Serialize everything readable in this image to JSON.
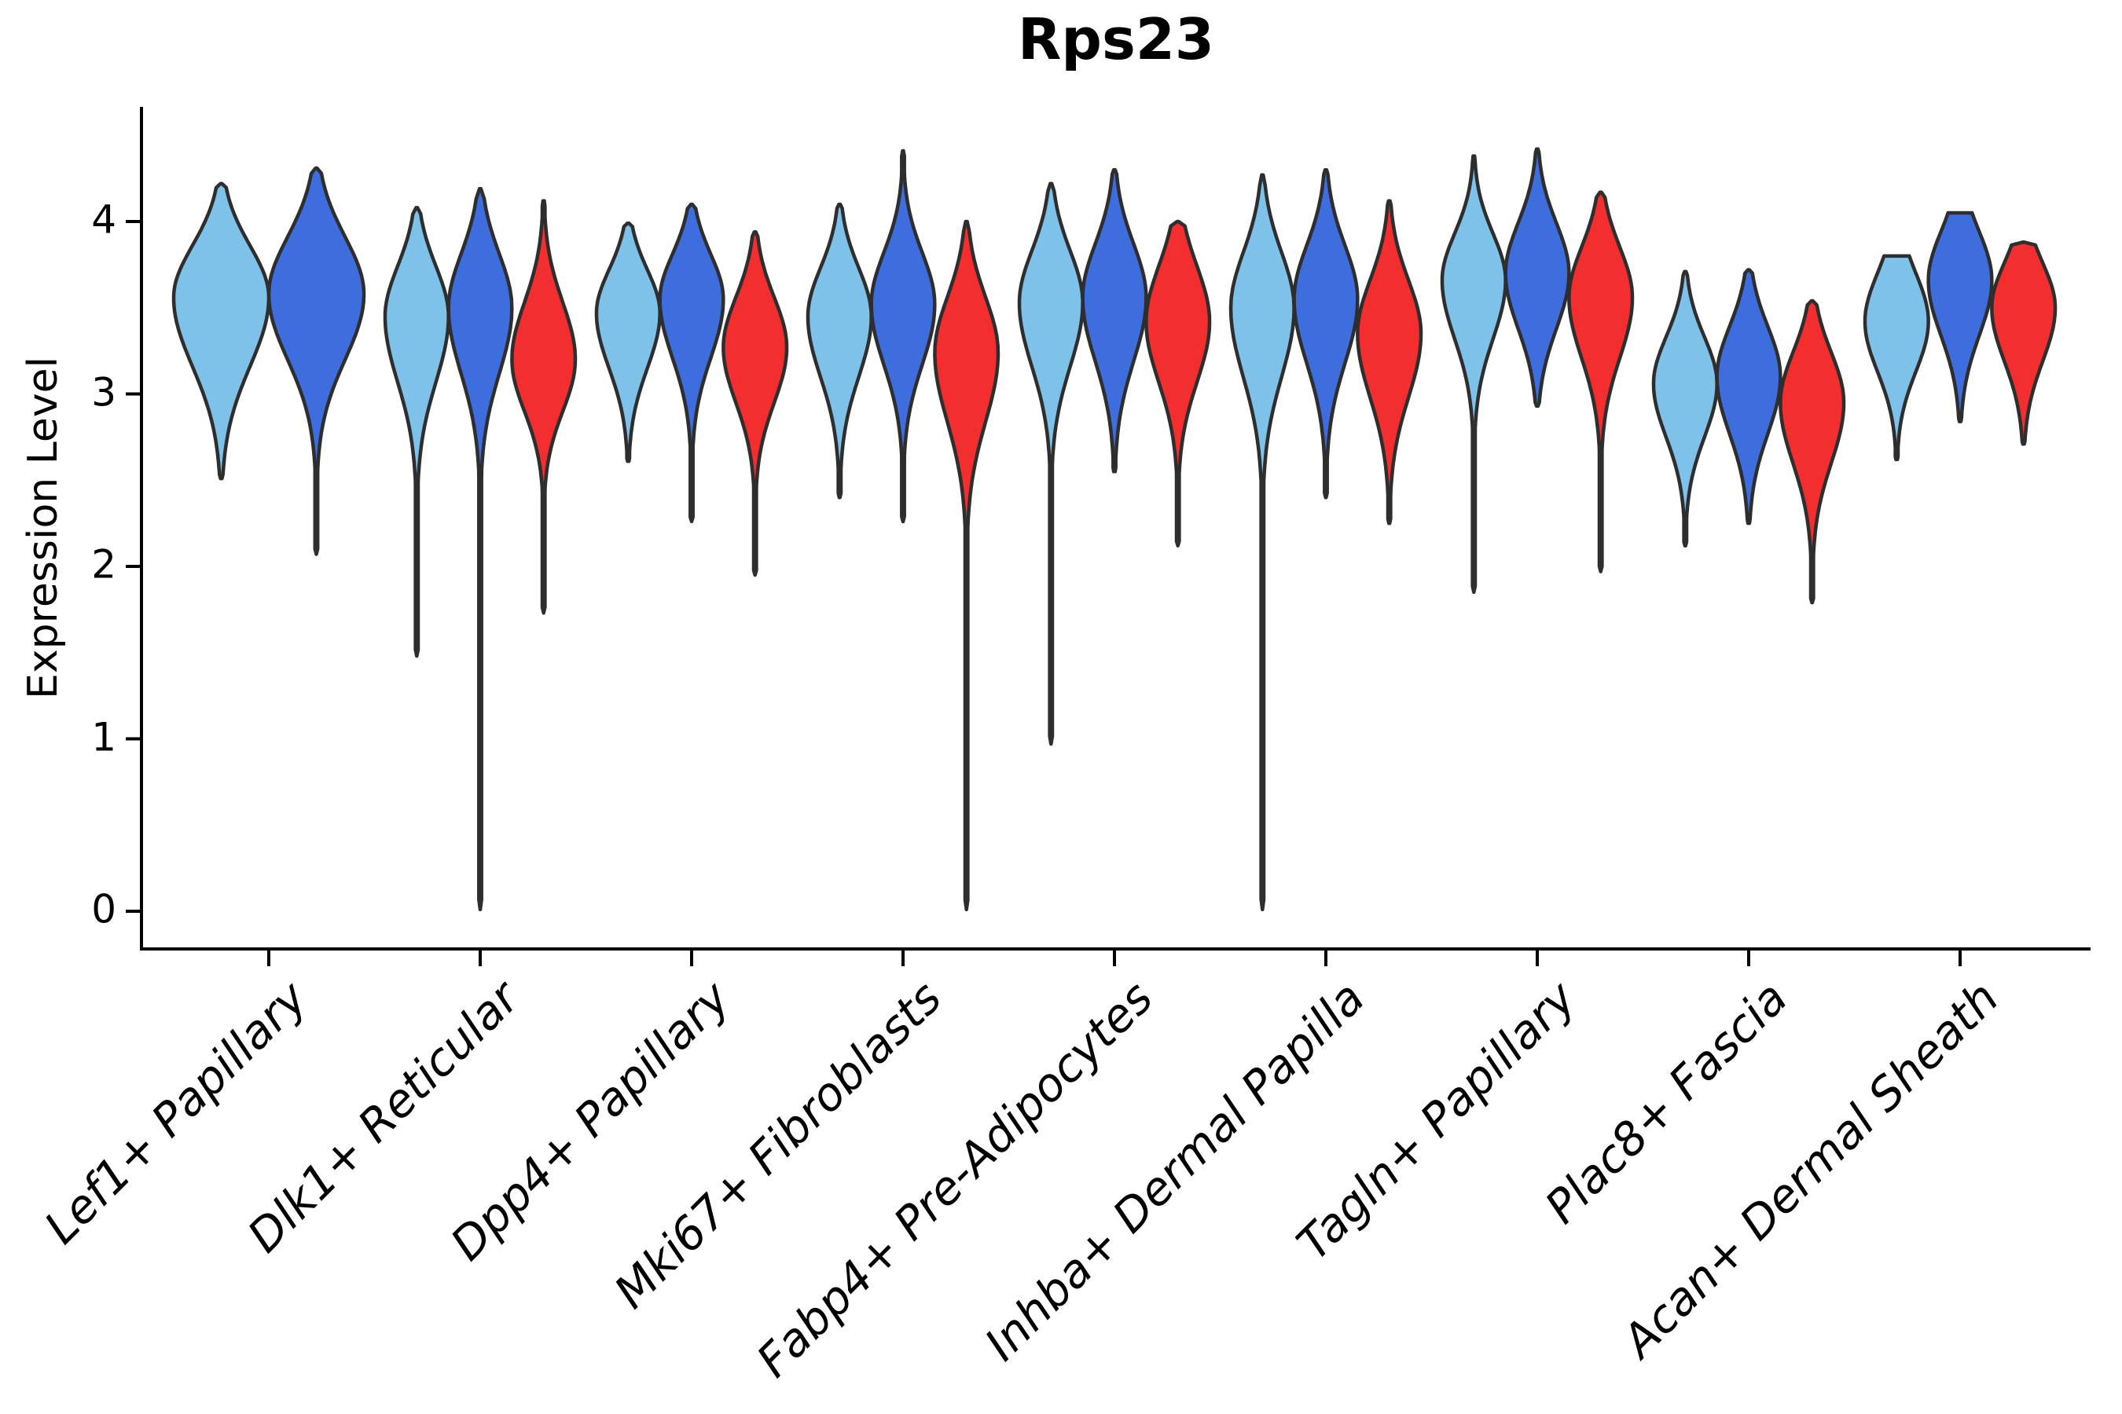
{
  "chart_data": {
    "type": "violin",
    "title": "Rps23",
    "xlabel": "",
    "ylabel": "Expression Level",
    "yticks": [
      0,
      1,
      2,
      3,
      4
    ],
    "ylim": [
      -0.22,
      4.66
    ],
    "grid": false,
    "legend": "none",
    "categories": [
      "Lef1+ Papillary",
      "Dlk1+ Reticular",
      "Dpp4+ Papillary",
      "Mki67+ Fibroblasts",
      "Fabp4+ Pre-Adipocytes",
      "Inhba+ Dermal Papilla",
      "Tagln+ Papillary",
      "Plac8+ Fascia",
      "Acan+ Dermal Sheath"
    ],
    "series": [
      {
        "name": "light-blue",
        "color": "#7EC2EA"
      },
      {
        "name": "dark-blue",
        "color": "#3E6EDE"
      },
      {
        "name": "red",
        "color": "#F22E2E"
      }
    ],
    "outline_color": "#2E2E2E",
    "groups": [
      {
        "category": "Lef1+ Papillary",
        "violins": [
          {
            "series": 0,
            "min": 2.51,
            "mode": 3.56,
            "max": 4.22,
            "sigma_up": 0.3,
            "sigma_down": 0.4,
            "flat_top": false
          },
          {
            "series": 1,
            "min": 2.07,
            "mode": 3.58,
            "max": 4.31,
            "sigma_up": 0.33,
            "sigma_down": 0.38,
            "flat_top": false
          }
        ]
      },
      {
        "category": "Dlk1+ Reticular",
        "violins": [
          {
            "series": 0,
            "min": 1.48,
            "mode": 3.45,
            "max": 4.08,
            "sigma_up": 0.29,
            "sigma_down": 0.38,
            "flat_top": false
          },
          {
            "series": 1,
            "min": 0.01,
            "mode": 3.5,
            "max": 4.19,
            "sigma_up": 0.31,
            "sigma_down": 0.38,
            "flat_top": false
          },
          {
            "series": 2,
            "min": 1.73,
            "mode": 3.2,
            "max": 4.12,
            "sigma_up": 0.33,
            "sigma_down": 0.3,
            "flat_top": false
          }
        ]
      },
      {
        "category": "Dpp4+ Papillary",
        "violins": [
          {
            "series": 0,
            "min": 2.61,
            "mode": 3.47,
            "max": 3.99,
            "sigma_up": 0.25,
            "sigma_down": 0.32,
            "flat_top": false
          },
          {
            "series": 1,
            "min": 2.26,
            "mode": 3.55,
            "max": 4.1,
            "sigma_up": 0.26,
            "sigma_down": 0.34,
            "flat_top": false
          },
          {
            "series": 2,
            "min": 1.95,
            "mode": 3.27,
            "max": 3.94,
            "sigma_up": 0.29,
            "sigma_down": 0.32,
            "flat_top": false
          }
        ]
      },
      {
        "category": "Mki67+ Fibroblasts",
        "violins": [
          {
            "series": 0,
            "min": 2.4,
            "mode": 3.45,
            "max": 4.1,
            "sigma_up": 0.28,
            "sigma_down": 0.35,
            "flat_top": false
          },
          {
            "series": 1,
            "min": 2.26,
            "mode": 3.52,
            "max": 4.41,
            "sigma_up": 0.3,
            "sigma_down": 0.35,
            "flat_top": false
          },
          {
            "series": 2,
            "min": 0.01,
            "mode": 3.24,
            "max": 4.0,
            "sigma_up": 0.32,
            "sigma_down": 0.4,
            "flat_top": false
          }
        ]
      },
      {
        "category": "Fabp4+ Pre-Adipocytes",
        "violins": [
          {
            "series": 0,
            "min": 0.97,
            "mode": 3.53,
            "max": 4.22,
            "sigma_up": 0.3,
            "sigma_down": 0.37,
            "flat_top": false
          },
          {
            "series": 1,
            "min": 2.55,
            "mode": 3.56,
            "max": 4.3,
            "sigma_up": 0.31,
            "sigma_down": 0.37,
            "flat_top": false
          },
          {
            "series": 2,
            "min": 2.12,
            "mode": 3.42,
            "max": 4.0,
            "sigma_up": 0.32,
            "sigma_down": 0.35,
            "flat_top": false
          }
        ]
      },
      {
        "category": "Inhba+ Dermal Papilla",
        "violins": [
          {
            "series": 0,
            "min": 0.01,
            "mode": 3.5,
            "max": 4.27,
            "sigma_up": 0.32,
            "sigma_down": 0.4,
            "flat_top": false
          },
          {
            "series": 1,
            "min": 2.4,
            "mode": 3.55,
            "max": 4.3,
            "sigma_up": 0.31,
            "sigma_down": 0.37,
            "flat_top": false
          },
          {
            "series": 2,
            "min": 2.25,
            "mode": 3.35,
            "max": 4.12,
            "sigma_up": 0.31,
            "sigma_down": 0.37,
            "flat_top": false
          }
        ]
      },
      {
        "category": "Tagln+ Papillary",
        "violins": [
          {
            "series": 0,
            "min": 1.85,
            "mode": 3.66,
            "max": 4.38,
            "sigma_up": 0.27,
            "sigma_down": 0.34,
            "flat_top": false
          },
          {
            "series": 1,
            "min": 2.93,
            "mode": 3.7,
            "max": 4.42,
            "sigma_up": 0.29,
            "sigma_down": 0.32,
            "flat_top": false
          },
          {
            "series": 2,
            "min": 1.97,
            "mode": 3.56,
            "max": 4.17,
            "sigma_up": 0.29,
            "sigma_down": 0.35,
            "flat_top": false
          }
        ]
      },
      {
        "category": "Plac8+ Fascia",
        "violins": [
          {
            "series": 0,
            "min": 2.12,
            "mode": 3.06,
            "max": 3.71,
            "sigma_up": 0.27,
            "sigma_down": 0.31,
            "flat_top": false
          },
          {
            "series": 1,
            "min": 2.25,
            "mode": 3.1,
            "max": 3.72,
            "sigma_up": 0.29,
            "sigma_down": 0.33,
            "flat_top": false
          },
          {
            "series": 2,
            "min": 1.79,
            "mode": 2.95,
            "max": 3.54,
            "sigma_up": 0.29,
            "sigma_down": 0.35,
            "flat_top": false
          }
        ]
      },
      {
        "category": "Acan+ Dermal Sheath",
        "violins": [
          {
            "series": 0,
            "min": 2.62,
            "mode": 3.42,
            "max": 3.8,
            "sigma_up": 0.28,
            "sigma_down": 0.29,
            "flat_top": true
          },
          {
            "series": 1,
            "min": 2.84,
            "mode": 3.66,
            "max": 4.05,
            "sigma_up": 0.28,
            "sigma_down": 0.32,
            "flat_top": true
          },
          {
            "series": 2,
            "min": 2.71,
            "mode": 3.5,
            "max": 3.88,
            "sigma_up": 0.26,
            "sigma_down": 0.31,
            "flat_top": false
          }
        ]
      }
    ]
  }
}
